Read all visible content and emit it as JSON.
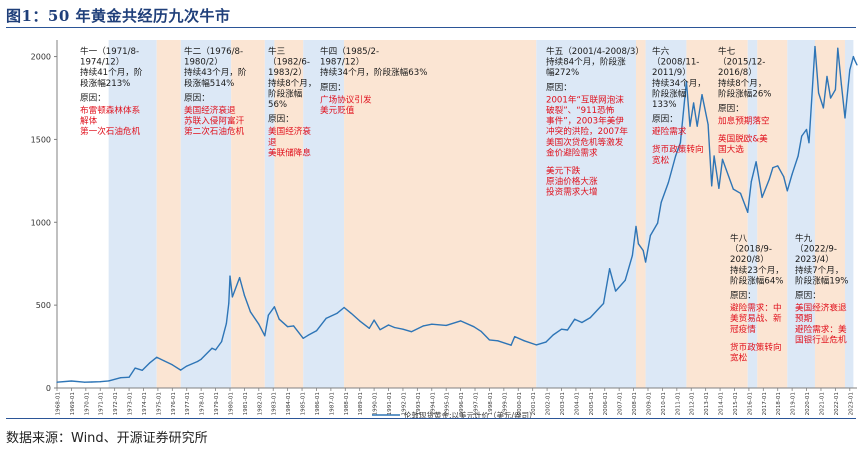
{
  "figure": {
    "title": "图1：50 年黄金共经历九次牛市",
    "source": "数据来源：Wind、开源证券研究所"
  },
  "chart_data": {
    "type": "line",
    "title": "",
    "xlabel": "",
    "ylabel": "",
    "ylim": [
      0,
      2100
    ],
    "yticks": [
      0,
      500,
      1000,
      1500,
      2000
    ],
    "xlim": [
      "1968-01",
      "2023-07"
    ],
    "tick_labels": [
      "1968-01",
      "1969-01",
      "1970-01",
      "1971-01",
      "1972-01",
      "1973-01",
      "1974-01",
      "1975-01",
      "1976-01",
      "1977-01",
      "1978-01",
      "1979-01",
      "1980-01",
      "1981-01",
      "1982-01",
      "1983-01",
      "1984-01",
      "1985-01",
      "1986-01",
      "1987-01",
      "1988-01",
      "1989-01",
      "1990-01",
      "1991-01",
      "1992-01",
      "1993-01",
      "1994-01",
      "1995-01",
      "1996-01",
      "1997-01",
      "1998-01",
      "1999-01",
      "2000-01",
      "2001-01",
      "2002-01",
      "2003-01",
      "2004-01",
      "2005-01",
      "2006-01",
      "2007-01",
      "2008-01",
      "2009-01",
      "2010-01",
      "2011-01",
      "2012-01",
      "2013-01",
      "2014-01",
      "2015-01",
      "2016-01",
      "2017-01",
      "2018-01",
      "2019-01",
      "2020-01",
      "2021-01",
      "2022-01",
      "2023-01"
    ],
    "grid": false,
    "legend": "bottom-center",
    "series": [
      {
        "name": "伦敦现货黄金:以美元计价（美元/盎司）",
        "color": "#2e75b6",
        "points": [
          [
            "1968-01",
            35
          ],
          [
            "1969-01",
            42
          ],
          [
            "1969-12",
            35
          ],
          [
            "1970-06",
            36
          ],
          [
            "1971-01",
            38
          ],
          [
            "1971-08",
            43
          ],
          [
            "1972-06",
            62
          ],
          [
            "1973-01",
            65
          ],
          [
            "1973-06",
            120
          ],
          [
            "1973-12",
            107
          ],
          [
            "1974-06",
            150
          ],
          [
            "1974-12",
            185
          ],
          [
            "1975-06",
            165
          ],
          [
            "1976-01",
            140
          ],
          [
            "1976-08",
            108
          ],
          [
            "1977-01",
            132
          ],
          [
            "1977-10",
            160
          ],
          [
            "1978-01",
            173
          ],
          [
            "1978-10",
            240
          ],
          [
            "1979-01",
            230
          ],
          [
            "1979-06",
            280
          ],
          [
            "1979-10",
            390
          ],
          [
            "1979-12",
            512
          ],
          [
            "1980-01",
            675
          ],
          [
            "1980-03",
            550
          ],
          [
            "1980-09",
            666
          ],
          [
            "1981-01",
            560
          ],
          [
            "1981-06",
            460
          ],
          [
            "1982-01",
            385
          ],
          [
            "1982-06",
            315
          ],
          [
            "1982-09",
            440
          ],
          [
            "1983-02",
            490
          ],
          [
            "1983-06",
            415
          ],
          [
            "1984-01",
            370
          ],
          [
            "1984-06",
            375
          ],
          [
            "1985-02",
            300
          ],
          [
            "1985-06",
            318
          ],
          [
            "1986-01",
            345
          ],
          [
            "1986-09",
            420
          ],
          [
            "1987-06",
            450
          ],
          [
            "1987-12",
            486
          ],
          [
            "1988-06",
            450
          ],
          [
            "1989-01",
            405
          ],
          [
            "1989-09",
            360
          ],
          [
            "1990-01",
            410
          ],
          [
            "1990-06",
            352
          ],
          [
            "1991-01",
            380
          ],
          [
            "1991-06",
            365
          ],
          [
            "1992-01",
            355
          ],
          [
            "1992-08",
            340
          ],
          [
            "1993-06",
            375
          ],
          [
            "1994-01",
            385
          ],
          [
            "1995-01",
            378
          ],
          [
            "1996-01",
            405
          ],
          [
            "1996-12",
            370
          ],
          [
            "1997-06",
            342
          ],
          [
            "1998-01",
            290
          ],
          [
            "1998-08",
            285
          ],
          [
            "1999-07",
            258
          ],
          [
            "1999-10",
            310
          ],
          [
            "2000-06",
            285
          ],
          [
            "2001-04",
            260
          ],
          [
            "2001-12",
            277
          ],
          [
            "2002-06",
            320
          ],
          [
            "2003-01",
            355
          ],
          [
            "2003-06",
            350
          ],
          [
            "2003-12",
            415
          ],
          [
            "2004-06",
            395
          ],
          [
            "2005-01",
            425
          ],
          [
            "2005-12",
            510
          ],
          [
            "2006-05",
            720
          ],
          [
            "2006-10",
            585
          ],
          [
            "2007-06",
            650
          ],
          [
            "2007-12",
            800
          ],
          [
            "2008-03",
            975
          ],
          [
            "2008-05",
            870
          ],
          [
            "2008-09",
            830
          ],
          [
            "2008-11",
            760
          ],
          [
            "2009-03",
            920
          ],
          [
            "2009-09",
            995
          ],
          [
            "2009-12",
            1120
          ],
          [
            "2010-06",
            1240
          ],
          [
            "2010-12",
            1400
          ],
          [
            "2011-04",
            1480
          ],
          [
            "2011-09",
            1850
          ],
          [
            "2011-12",
            1580
          ],
          [
            "2012-03",
            1720
          ],
          [
            "2012-06",
            1580
          ],
          [
            "2012-10",
            1770
          ],
          [
            "2013-03",
            1590
          ],
          [
            "2013-06",
            1220
          ],
          [
            "2013-08",
            1400
          ],
          [
            "2013-12",
            1205
          ],
          [
            "2014-03",
            1380
          ],
          [
            "2014-06",
            1320
          ],
          [
            "2014-12",
            1200
          ],
          [
            "2015-06",
            1175
          ],
          [
            "2015-12",
            1060
          ],
          [
            "2016-03",
            1245
          ],
          [
            "2016-07",
            1365
          ],
          [
            "2016-12",
            1150
          ],
          [
            "2017-06",
            1260
          ],
          [
            "2017-09",
            1330
          ],
          [
            "2018-01",
            1340
          ],
          [
            "2018-06",
            1275
          ],
          [
            "2018-09",
            1190
          ],
          [
            "2019-01",
            1290
          ],
          [
            "2019-06",
            1400
          ],
          [
            "2019-09",
            1520
          ],
          [
            "2020-01",
            1560
          ],
          [
            "2020-03",
            1480
          ],
          [
            "2020-08",
            2060
          ],
          [
            "2020-11",
            1780
          ],
          [
            "2021-03",
            1690
          ],
          [
            "2021-06",
            1880
          ],
          [
            "2021-09",
            1750
          ],
          [
            "2022-01",
            1800
          ],
          [
            "2022-03",
            2050
          ],
          [
            "2022-06",
            1830
          ],
          [
            "2022-09",
            1630
          ],
          [
            "2023-01",
            1920
          ],
          [
            "2023-04",
            2000
          ],
          [
            "2023-05",
            1980
          ],
          [
            "2023-07",
            1950
          ]
        ]
      }
    ],
    "bull_markets": [
      {
        "start": "1971-08",
        "end": "1974-12",
        "lines": [
          "牛一（1971/8-",
          "1974/12）",
          "持续41个月，阶",
          "段涨幅213%"
        ],
        "reason_label": "原因：",
        "reasons": [
          "布雷顿森林体系",
          "解体",
          "第一次石油危机"
        ]
      },
      {
        "start": "1976-08",
        "end": "1980-02",
        "lines": [
          "牛二（1976/8-",
          "1980/2）",
          "持续43个月，阶",
          "段涨幅514%"
        ],
        "reason_label": "原因：",
        "reasons": [
          "美国经济衰退",
          "苏联入侵阿富汗",
          "第二次石油危机"
        ]
      },
      {
        "start": "1982-06",
        "end": "1983-02",
        "lines": [
          "牛三",
          "（1982/6-",
          "1983/2）",
          "持续8个月，",
          "阶段涨幅",
          "56%"
        ],
        "reason_label": "原因：",
        "reasons": [
          "美国经济衰",
          "退",
          "美联储降息"
        ]
      },
      {
        "start": "1985-02",
        "end": "1987-12",
        "lines": [
          "牛四（1985/2-",
          "1987/12）",
          "持续34个月，阶段涨幅63%"
        ],
        "reason_label": "原因：",
        "reasons": [
          "广场协议引发",
          "美元贬值"
        ]
      },
      {
        "start": "2001-04",
        "end": "2008-03",
        "lines": [
          "牛五（2001/4-2008/3）",
          "持续84个月，阶段涨",
          "幅272%"
        ],
        "reason_label": "原因：",
        "reasons": [
          "2001年“互联网泡沫",
          "破裂”、“911恐怖",
          "事件”，2003年美伊",
          "冲突的洪险，2007年",
          "美国次贷危机等激发",
          "金价避险需求",
          "",
          "美元下跌",
          "原油价格大涨",
          "投资需求大增"
        ]
      },
      {
        "start": "2008-11",
        "end": "2011-09",
        "lines": [
          "牛六",
          "（2008/11-",
          "2011/9）",
          "持续34个月，",
          "阶段涨幅",
          "133%"
        ],
        "reason_label": "原因：",
        "reasons": [
          "避险需求",
          "",
          "货币政策转向",
          "宽松"
        ]
      },
      {
        "start": "2015-12",
        "end": "2016-08",
        "lines": [
          "牛七",
          "（2015/12-",
          "2016/8）",
          "持续8个月，",
          "阶段涨幅26%"
        ],
        "reason_label": "原因：",
        "reasons": [
          "加息预期落空",
          "",
          "英国脱欧&美",
          "国大选"
        ]
      },
      {
        "start": "2018-09",
        "end": "2020-08",
        "lines": [
          "牛八",
          "（2018/9-",
          "2020/8）",
          "持续23个月，",
          "阶段涨幅64%"
        ],
        "reason_label": "原因：",
        "reasons": [
          "避险需求：中",
          "美贸易战、新",
          "冠疫情",
          "",
          "货币政策转向",
          "宽松"
        ]
      },
      {
        "start": "2022-09",
        "end": "2023-04",
        "lines": [
          "牛九",
          "（2022/9-",
          "2023/4）",
          "持续7个月，",
          "阶段涨幅19%"
        ],
        "reason_label": "原因：",
        "reasons": [
          "美国经济衰退",
          "预期",
          "避险需求：美",
          "国银行业危机"
        ]
      }
    ]
  },
  "colors": {
    "bull_band": "#dce8f6",
    "bear_band": "#fbe5d3",
    "line": "#2e75b6",
    "annotation_text": "#1a1a1a",
    "reason_text": "#e0101c",
    "title": "#1f3f7a"
  }
}
